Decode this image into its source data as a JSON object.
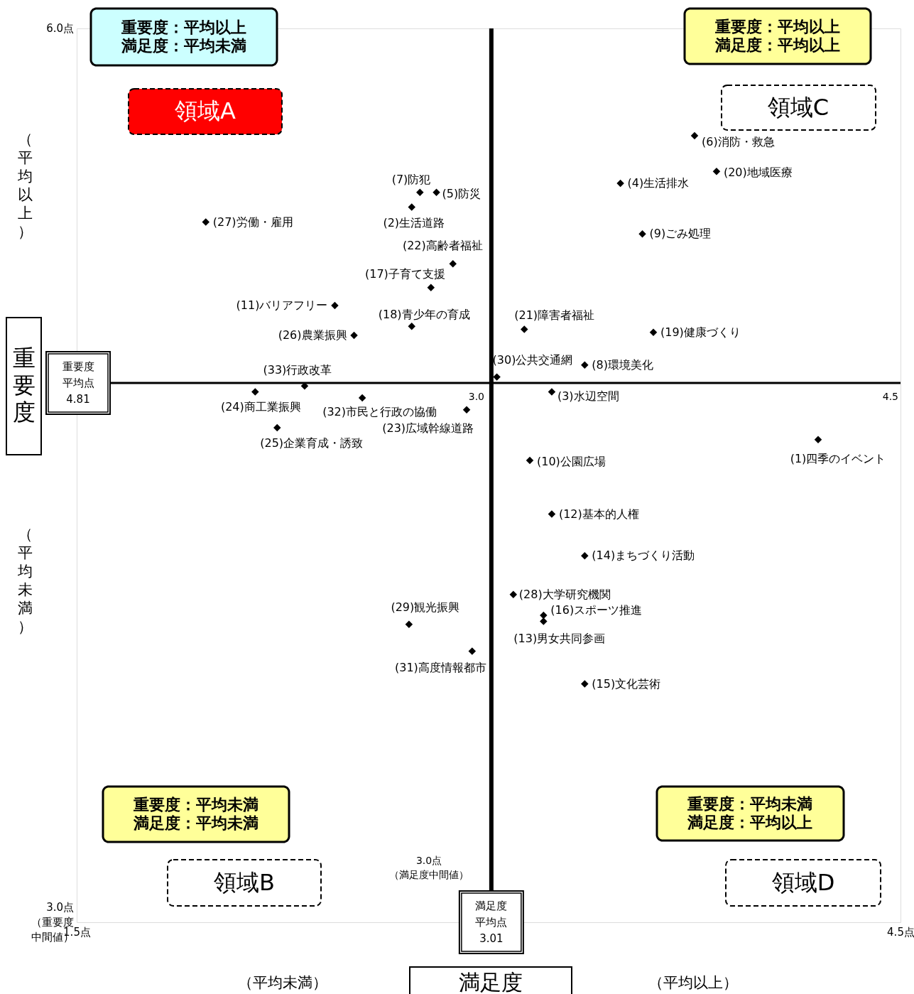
{
  "chart_data": {
    "type": "scatter",
    "marker": "diamond",
    "xlabel": "満足度",
    "ylabel": "重要度",
    "xlim": [
      1.5,
      4.5
    ],
    "ylim": [
      3.0,
      6.0
    ],
    "xticks": [
      {
        "value": 1.5,
        "label": "1.5点"
      },
      {
        "value": 4.5,
        "label": "4.5点"
      }
    ],
    "yticks": [
      {
        "value": 6.0,
        "label": "6.0点"
      },
      {
        "value": 3.0,
        "label": "3.0点（重要度中間値）"
      }
    ],
    "ref_lines": [
      {
        "axis": "x",
        "value": 3.01,
        "label": "満足度平均点3.01"
      },
      {
        "axis": "y",
        "value": 4.81,
        "label": "重要度平均点4.81"
      }
    ],
    "annotations": [
      "重要度：平均以上",
      "満足度：平均未満",
      "領域A",
      "重要度：平均以上",
      "満足度：平均以上",
      "領域C",
      "重要度：平均未満",
      "満足度：平均未満",
      "領域B",
      "重要度：平均未満",
      "満足度：平均以上",
      "領域D",
      "3.0点（満足度中間値）",
      "（平均以上）",
      "（平均未満）",
      "（平均未満）",
      "（平均以上）",
      "3.0",
      "4.5"
    ],
    "series": [
      {
        "name": "(6)消防・救急",
        "color": "#000000",
        "x": [
          3.75
        ],
        "values": [
          5.64
        ]
      },
      {
        "name": "(20)地域医療",
        "color": "#000000",
        "x": [
          3.83
        ],
        "values": [
          5.52
        ]
      },
      {
        "name": "(4)生活排水",
        "color": "#000000",
        "x": [
          3.48
        ],
        "values": [
          5.48
        ]
      },
      {
        "name": "(9)ごみ処理",
        "color": "#000000",
        "x": [
          3.56
        ],
        "values": [
          5.31
        ]
      },
      {
        "name": "(7)防犯",
        "color": "#000000",
        "x": [
          2.75
        ],
        "values": [
          5.45
        ]
      },
      {
        "name": "(5)防災",
        "color": "#000000",
        "x": [
          2.81
        ],
        "values": [
          5.45
        ]
      },
      {
        "name": "(2)生活道路",
        "color": "#000000",
        "x": [
          2.72
        ],
        "values": [
          5.4
        ]
      },
      {
        "name": "(27)労働・雇用",
        "color": "#000000",
        "x": [
          1.97
        ],
        "values": [
          5.35
        ]
      },
      {
        "name": "(22)高齢者福祉",
        "color": "#000000",
        "x": [
          2.87
        ],
        "values": [
          5.21
        ]
      },
      {
        "name": "(17)子育て支援",
        "color": "#000000",
        "x": [
          2.79
        ],
        "values": [
          5.13
        ]
      },
      {
        "name": "(11)バリアフリー",
        "color": "#000000",
        "x": [
          2.44
        ],
        "values": [
          5.07
        ]
      },
      {
        "name": "(18)青少年の育成",
        "color": "#000000",
        "x": [
          2.72
        ],
        "values": [
          5.0
        ]
      },
      {
        "name": "(26)農業振興",
        "color": "#000000",
        "x": [
          2.51
        ],
        "values": [
          4.97
        ]
      },
      {
        "name": "(21)障害者福祉",
        "color": "#000000",
        "x": [
          3.13
        ],
        "values": [
          4.99
        ]
      },
      {
        "name": "(19)健康づくり",
        "color": "#000000",
        "x": [
          3.6
        ],
        "values": [
          4.98
        ]
      },
      {
        "name": "(30)公共交通網",
        "color": "#000000",
        "x": [
          3.03
        ],
        "values": [
          4.83
        ]
      },
      {
        "name": "(8)環境美化",
        "color": "#000000",
        "x": [
          3.35
        ],
        "values": [
          4.87
        ]
      },
      {
        "name": "(33)行政改革",
        "color": "#000000",
        "x": [
          2.33
        ],
        "values": [
          4.8
        ]
      },
      {
        "name": "(24)商工業振興",
        "color": "#000000",
        "x": [
          2.15
        ],
        "values": [
          4.78
        ]
      },
      {
        "name": "(32)市民と行政の協働",
        "color": "#000000",
        "x": [
          2.54
        ],
        "values": [
          4.76
        ]
      },
      {
        "name": "(3)水辺空間",
        "color": "#000000",
        "x": [
          3.23
        ],
        "values": [
          4.78
        ]
      },
      {
        "name": "(23)広域幹線道路",
        "color": "#000000",
        "x": [
          2.92
        ],
        "values": [
          4.72
        ]
      },
      {
        "name": "(25)企業育成・誘致",
        "color": "#000000",
        "x": [
          2.23
        ],
        "values": [
          4.66
        ]
      },
      {
        "name": "(1)四季のイベント",
        "color": "#000000",
        "x": [
          4.2
        ],
        "values": [
          4.62
        ]
      },
      {
        "name": "(10)公園広場",
        "color": "#000000",
        "x": [
          3.15
        ],
        "values": [
          4.55
        ]
      },
      {
        "name": "(12)基本的人権",
        "color": "#000000",
        "x": [
          3.23
        ],
        "values": [
          4.37
        ]
      },
      {
        "name": "(14)まちづくり活動",
        "color": "#000000",
        "x": [
          3.35
        ],
        "values": [
          4.23
        ]
      },
      {
        "name": "(28)大学研究機関",
        "color": "#000000",
        "x": [
          3.09
        ],
        "values": [
          4.1
        ]
      },
      {
        "name": "(16)スポーツ推進",
        "color": "#000000",
        "x": [
          3.2
        ],
        "values": [
          4.03
        ]
      },
      {
        "name": "(13)男女共同参画",
        "color": "#000000",
        "x": [
          3.2
        ],
        "values": [
          4.01
        ]
      },
      {
        "name": "(29)観光振興",
        "color": "#000000",
        "x": [
          2.71
        ],
        "values": [
          4.0
        ]
      },
      {
        "name": "(31)高度情報都市",
        "color": "#000000",
        "x": [
          2.94
        ],
        "values": [
          3.91
        ]
      },
      {
        "name": "(15)文化芸術",
        "color": "#000000",
        "x": [
          3.35
        ],
        "values": [
          3.8
        ]
      }
    ]
  }
}
